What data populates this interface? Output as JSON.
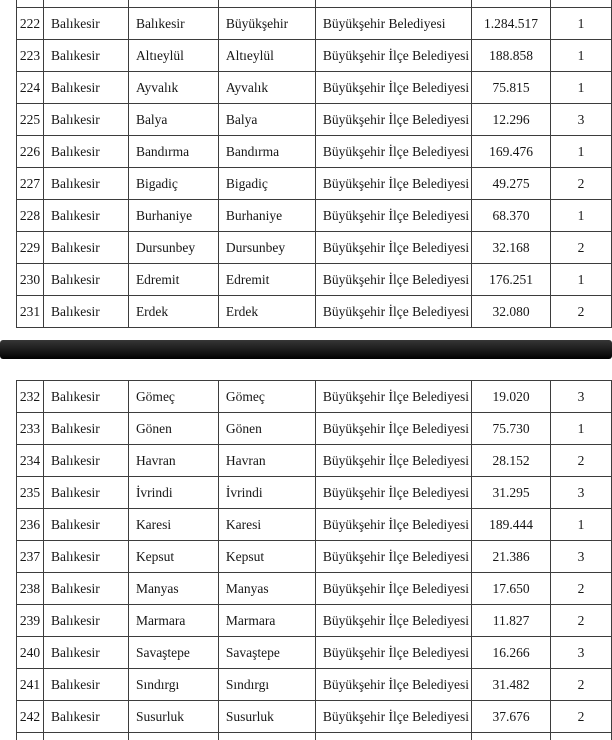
{
  "document": {
    "description_not_rendered": "",
    "province_repeated_value": "Balıkesir"
  },
  "colors": {
    "background": "#ffffff",
    "table_border": "#3d3d3d",
    "text": "#161616",
    "separator_bar_top": "#363636",
    "separator_bar_bottom": "#000000"
  },
  "tables": [
    {
      "id": "upper",
      "rows": [
        [
          "222",
          "Balıkesir",
          "Balıkesir",
          "Büyükşehir",
          "Büyükşehir Belediyesi",
          "1.284.517",
          "1"
        ],
        [
          "223",
          "Balıkesir",
          "Altıeylül",
          "Altıeylül",
          "Büyükşehir İlçe Belediyesi",
          "188.858",
          "1"
        ],
        [
          "224",
          "Balıkesir",
          "Ayvalık",
          "Ayvalık",
          "Büyükşehir İlçe Belediyesi",
          "75.815",
          "1"
        ],
        [
          "225",
          "Balıkesir",
          "Balya",
          "Balya",
          "Büyükşehir İlçe Belediyesi",
          "12.296",
          "3"
        ],
        [
          "226",
          "Balıkesir",
          "Bandırma",
          "Bandırma",
          "Büyükşehir İlçe Belediyesi",
          "169.476",
          "1"
        ],
        [
          "227",
          "Balıkesir",
          "Bigadiç",
          "Bigadiç",
          "Büyükşehir İlçe Belediyesi",
          "49.275",
          "2"
        ],
        [
          "228",
          "Balıkesir",
          "Burhaniye",
          "Burhaniye",
          "Büyükşehir İlçe Belediyesi",
          "68.370",
          "1"
        ],
        [
          "229",
          "Balıkesir",
          "Dursunbey",
          "Dursunbey",
          "Büyükşehir İlçe Belediyesi",
          "32.168",
          "2"
        ],
        [
          "230",
          "Balıkesir",
          "Edremit",
          "Edremit",
          "Büyükşehir İlçe Belediyesi",
          "176.251",
          "1"
        ],
        [
          "231",
          "Balıkesir",
          "Erdek",
          "Erdek",
          "Büyükşehir İlçe Belediyesi",
          "32.080",
          "2"
        ]
      ]
    },
    {
      "id": "lower",
      "rows": [
        [
          "232",
          "Balıkesir",
          "Gömeç",
          "Gömeç",
          "Büyükşehir İlçe Belediyesi",
          "19.020",
          "3"
        ],
        [
          "233",
          "Balıkesir",
          "Gönen",
          "Gönen",
          "Büyükşehir İlçe Belediyesi",
          "75.730",
          "1"
        ],
        [
          "234",
          "Balıkesir",
          "Havran",
          "Havran",
          "Büyükşehir İlçe Belediyesi",
          "28.152",
          "2"
        ],
        [
          "235",
          "Balıkesir",
          "İvrindi",
          "İvrindi",
          "Büyükşehir İlçe Belediyesi",
          "31.295",
          "3"
        ],
        [
          "236",
          "Balıkesir",
          "Karesi",
          "Karesi",
          "Büyükşehir İlçe Belediyesi",
          "189.444",
          "1"
        ],
        [
          "237",
          "Balıkesir",
          "Kepsut",
          "Kepsut",
          "Büyükşehir İlçe Belediyesi",
          "21.386",
          "3"
        ],
        [
          "238",
          "Balıkesir",
          "Manyas",
          "Manyas",
          "Büyükşehir İlçe Belediyesi",
          "17.650",
          "2"
        ],
        [
          "239",
          "Balıkesir",
          "Marmara",
          "Marmara",
          "Büyükşehir İlçe Belediyesi",
          "11.827",
          "2"
        ],
        [
          "240",
          "Balıkesir",
          "Savaştepe",
          "Savaştepe",
          "Büyükşehir İlçe Belediyesi",
          "16.266",
          "3"
        ],
        [
          "241",
          "Balıkesir",
          "Sındırgı",
          "Sındırgı",
          "Büyükşehir İlçe Belediyesi",
          "31.482",
          "2"
        ],
        [
          "242",
          "Balıkesir",
          "Susurluk",
          "Susurluk",
          "Büyükşehir İlçe Belediyesi",
          "37.676",
          "2"
        ]
      ]
    }
  ]
}
